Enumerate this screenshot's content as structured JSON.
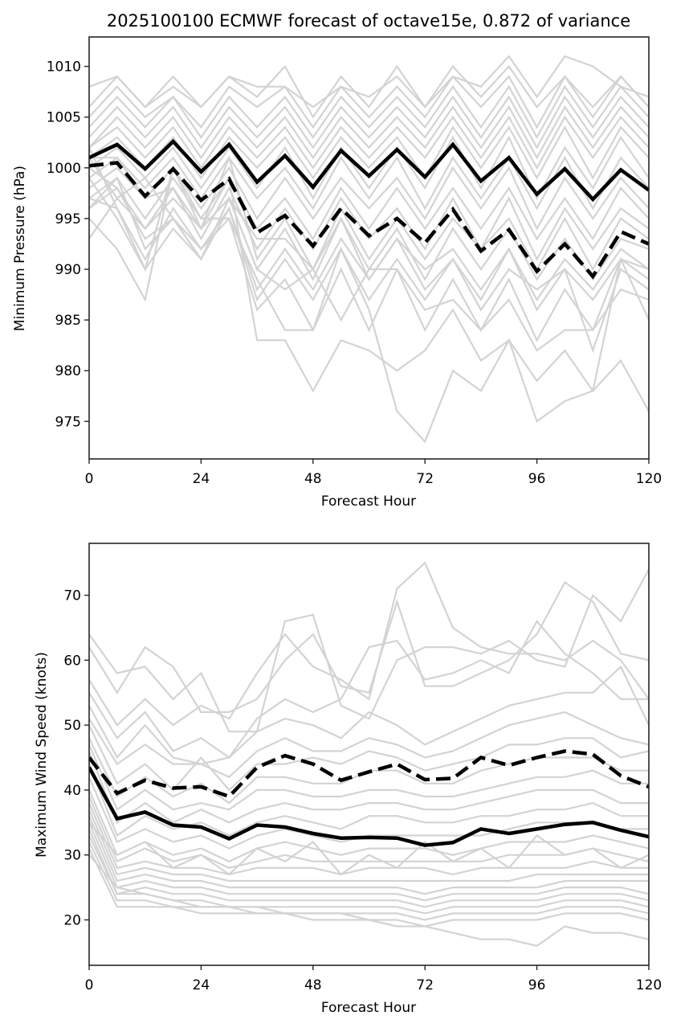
{
  "figure": {
    "title": "2025100100 ECMWF forecast of octave15e, 0.872 of variance"
  },
  "chart_data": [
    {
      "type": "line",
      "title": "2025100100 ECMWF forecast of octave15e, 0.872 of variance",
      "xlabel": "Forecast Hour",
      "ylabel": "Minimum Pressure (hPa)",
      "xlim": [
        0,
        120
      ],
      "ylim": [
        971.3,
        1012.9
      ],
      "xticks": [
        0,
        24,
        48,
        72,
        96,
        120
      ],
      "yticks": [
        975,
        980,
        985,
        990,
        995,
        1000,
        1005,
        1010
      ],
      "grid": false,
      "x": [
        0,
        6,
        12,
        18,
        24,
        30,
        36,
        42,
        48,
        54,
        60,
        66,
        72,
        78,
        84,
        90,
        96,
        102,
        108,
        114,
        120
      ],
      "series": [
        {
          "name": "ensemble-mean",
          "style": "solid",
          "color": "#000000",
          "values": [
            1001.0,
            1002.3,
            999.9,
            1002.6,
            999.6,
            1002.3,
            998.6,
            1001.2,
            998.1,
            1001.7,
            999.2,
            1001.8,
            999.1,
            1002.3,
            998.7,
            1001.0,
            997.4,
            999.9,
            996.9,
            999.8,
            997.8
          ]
        },
        {
          "name": "ensemble-median-or-control",
          "style": "dashed",
          "color": "#000000",
          "values": [
            1000.2,
            1000.5,
            997.2,
            999.9,
            996.8,
            998.9,
            993.6,
            995.3,
            992.3,
            996.0,
            993.3,
            995.0,
            992.6,
            995.9,
            991.8,
            993.9,
            989.8,
            992.5,
            989.3,
            993.7,
            992.5
          ]
        }
      ],
      "members_color": "#d3d3d3",
      "members": [
        [
          1008,
          1009,
          1006,
          1009,
          1006,
          1009,
          1007,
          1010,
          1005,
          1009,
          1006,
          1010,
          1006,
          1010,
          1007,
          1010,
          1006,
          1009,
          1006,
          1009,
          1006
        ],
        [
          1006,
          1009,
          1006,
          1008,
          1006,
          1009,
          1008,
          1008,
          1006,
          1008,
          1007,
          1009,
          1006,
          1009,
          1008,
          1011,
          1007,
          1011,
          1010,
          1008,
          1007
        ],
        [
          1005,
          1008,
          1005,
          1007,
          1004,
          1008,
          1006,
          1008,
          1004,
          1008,
          1005,
          1008,
          1005,
          1009,
          1006,
          1009,
          1004,
          1009,
          1005,
          1009,
          1006
        ],
        [
          1004,
          1007,
          1004,
          1007,
          1003,
          1007,
          1004,
          1007,
          1003,
          1007,
          1004,
          1007,
          1004,
          1008,
          1004,
          1008,
          1003,
          1008,
          1004,
          1008,
          1005
        ],
        [
          1003,
          1006,
          1003,
          1006,
          1002,
          1006,
          1003,
          1006,
          1002,
          1006,
          1003,
          1006,
          1003,
          1007,
          1003,
          1007,
          1002,
          1007,
          1003,
          1007,
          1004
        ],
        [
          1002,
          1005,
          1002,
          1005,
          1001,
          1005,
          1002,
          1005,
          1001,
          1005,
          1002,
          1005,
          1002,
          1006,
          1002,
          1006,
          1001,
          1006,
          1002,
          1006,
          1003
        ],
        [
          1002,
          1004,
          1001,
          1004,
          1000,
          1004,
          1001,
          1004,
          1000,
          1004,
          1001,
          1004,
          1001,
          1005,
          1001,
          1005,
          1000,
          1005,
          1001,
          1005,
          1002
        ],
        [
          1001,
          1003,
          1000,
          1003,
          999,
          1003,
          1000,
          1003,
          999,
          1003,
          1000,
          1003,
          999,
          1004,
          1000,
          1004,
          999,
          1004,
          999,
          1004,
          1001
        ],
        [
          1000,
          1002,
          999,
          1002,
          998,
          1002,
          998,
          1002,
          997,
          1002,
          998,
          1002,
          998,
          1003,
          998,
          1003,
          997,
          1002,
          998,
          1003,
          999
        ],
        [
          999,
          1001,
          998,
          1001,
          997,
          1001,
          997,
          1000,
          996,
          1001,
          997,
          1001,
          996,
          1001,
          997,
          1001,
          996,
          1001,
          996,
          1001,
          998
        ],
        [
          998,
          1000,
          997,
          1000,
          996,
          1000,
          995,
          999,
          995,
          999,
          996,
          999,
          995,
          1000,
          996,
          1000,
          994,
          999,
          995,
          999,
          996
        ],
        [
          997,
          999,
          995,
          999,
          995,
          999,
          994,
          997,
          993,
          998,
          994,
          998,
          994,
          998,
          994,
          998,
          993,
          997,
          993,
          998,
          995
        ],
        [
          996,
          998,
          994,
          998,
          993,
          998,
          992,
          996,
          992,
          997,
          993,
          996,
          992,
          997,
          992,
          997,
          991,
          996,
          992,
          996,
          994
        ],
        [
          1001,
          997,
          994,
          997,
          994,
          1001,
          991,
          995,
          990,
          996,
          991,
          995,
          991,
          995,
          992,
          995,
          990,
          995,
          990,
          995,
          993
        ],
        [
          996,
          999,
          992,
          995,
          991,
          997,
          990,
          994,
          989,
          995,
          990,
          994,
          989,
          994,
          990,
          994,
          989,
          993,
          989,
          993,
          992
        ],
        [
          997,
          996,
          991,
          996,
          992,
          996,
          988,
          992,
          988,
          993,
          989,
          993,
          990,
          992,
          988,
          992,
          987,
          991,
          988,
          992,
          990
        ],
        [
          999,
          995,
          990,
          994,
          991,
          996,
          987,
          991,
          987,
          992,
          987,
          991,
          987,
          991,
          987,
          992,
          986,
          990,
          987,
          991,
          989
        ],
        [
          1000,
          998,
          993,
          995,
          992,
          995,
          986,
          989,
          984,
          990,
          984,
          990,
          984,
          989,
          984,
          989,
          983,
          988,
          984,
          988,
          987
        ],
        [
          995,
          992,
          987,
          1000,
          994,
          999,
          983,
          983,
          978,
          983,
          982,
          980,
          982,
          986,
          981,
          983,
          979,
          982,
          978,
          981,
          976
        ],
        [
          1002,
          996,
          990,
          1000,
          995,
          995,
          989,
          984,
          984,
          992,
          986,
          976,
          973,
          980,
          978,
          983,
          975,
          977,
          978,
          991,
          985
        ],
        [
          993,
          997,
          999,
          995,
          991,
          997,
          990,
          988,
          990,
          985,
          990,
          990,
          986,
          987,
          984,
          987,
          982,
          984,
          984,
          991,
          990
        ],
        [
          1001,
          1001,
          997,
          998,
          994,
          997,
          993,
          993,
          990,
          995,
          989,
          993,
          988,
          991,
          986,
          990,
          988,
          990,
          982,
          990,
          988
        ]
      ]
    },
    {
      "type": "line",
      "title": "",
      "xlabel": "Forecast Hour",
      "ylabel": "Maximum Wind Speed (knots)",
      "xlim": [
        0,
        120
      ],
      "ylim": [
        13,
        78
      ],
      "xticks": [
        0,
        24,
        48,
        72,
        96,
        120
      ],
      "yticks": [
        20,
        30,
        40,
        50,
        60,
        70
      ],
      "grid": false,
      "x": [
        0,
        6,
        12,
        18,
        24,
        30,
        36,
        42,
        48,
        54,
        60,
        66,
        72,
        78,
        84,
        90,
        96,
        102,
        108,
        114,
        120
      ],
      "series": [
        {
          "name": "ensemble-mean",
          "style": "solid",
          "color": "#000000",
          "values": [
            43.5,
            35.6,
            36.6,
            34.6,
            34.3,
            32.5,
            34.6,
            34.3,
            33.3,
            32.6,
            32.7,
            32.6,
            31.5,
            31.9,
            34.0,
            33.3,
            34.0,
            34.7,
            35.0,
            33.8,
            32.8
          ]
        },
        {
          "name": "ensemble-median-or-control",
          "style": "dashed",
          "color": "#000000",
          "values": [
            45.0,
            39.5,
            41.5,
            40.3,
            40.5,
            39.0,
            43.5,
            45.3,
            44.0,
            41.5,
            42.8,
            44.0,
            41.6,
            41.8,
            45.0,
            43.8,
            45.0,
            46.0,
            45.5,
            42.2,
            40.5
          ]
        }
      ],
      "members_color": "#d3d3d3",
      "members": [
        [
          64,
          58,
          59,
          54,
          58,
          49,
          49,
          66,
          67,
          53,
          51,
          60,
          62,
          62,
          61,
          63,
          60,
          59,
          70,
          66,
          74
        ],
        [
          62,
          55,
          62,
          59,
          52,
          52,
          54,
          60,
          64,
          56,
          55,
          69,
          56,
          56,
          58,
          60,
          64,
          72,
          69,
          61,
          60
        ],
        [
          57,
          50,
          54,
          50,
          53,
          51,
          58,
          64,
          59,
          57,
          54,
          71,
          75,
          65,
          62,
          61,
          61,
          60,
          63,
          60,
          54
        ],
        [
          55,
          48,
          52,
          46,
          48,
          45,
          51,
          54,
          52,
          54,
          62,
          63,
          57,
          58,
          60,
          58,
          66,
          61,
          58,
          54,
          54
        ],
        [
          53,
          45,
          50,
          45,
          44,
          45,
          49,
          51,
          50,
          48,
          52,
          50,
          47,
          49,
          51,
          53,
          54,
          55,
          55,
          59,
          50
        ],
        [
          51,
          44,
          47,
          44,
          44,
          42,
          46,
          48,
          46,
          46,
          48,
          47,
          45,
          46,
          48,
          50,
          51,
          52,
          50,
          48,
          47
        ],
        [
          50,
          41,
          44,
          40,
          45,
          40,
          44,
          44,
          45,
          44,
          46,
          45,
          43,
          44,
          45,
          47,
          47,
          48,
          48,
          45,
          46
        ],
        [
          48,
          39,
          42,
          39,
          41,
          38,
          42,
          42,
          41,
          41,
          43,
          43,
          41,
          41,
          43,
          44,
          45,
          45,
          45,
          43,
          43
        ],
        [
          47,
          37,
          40,
          37,
          38,
          37,
          40,
          40,
          39,
          39,
          40,
          40,
          39,
          39,
          40,
          41,
          42,
          42,
          43,
          41,
          41
        ],
        [
          46,
          35,
          38,
          35,
          37,
          35,
          37,
          38,
          37,
          37,
          38,
          38,
          37,
          37,
          38,
          39,
          40,
          40,
          40,
          38,
          38
        ],
        [
          44,
          33,
          36,
          34,
          35,
          33,
          35,
          36,
          35,
          34,
          36,
          36,
          35,
          35,
          36,
          36,
          37,
          37,
          38,
          36,
          36
        ],
        [
          42,
          32,
          34,
          32,
          33,
          31,
          33,
          34,
          33,
          32,
          33,
          33,
          33,
          33,
          33,
          34,
          35,
          35,
          35,
          34,
          34
        ],
        [
          40,
          30,
          32,
          30,
          31,
          29,
          31,
          32,
          31,
          30,
          31,
          31,
          31,
          30,
          31,
          32,
          32,
          32,
          33,
          32,
          31
        ],
        [
          39,
          29,
          31,
          29,
          30,
          28,
          29,
          30,
          29,
          29,
          29,
          29,
          29,
          29,
          29,
          30,
          30,
          30,
          31,
          30,
          29
        ],
        [
          38,
          28,
          29,
          28,
          28,
          27,
          28,
          28,
          28,
          27,
          28,
          28,
          28,
          27,
          28,
          28,
          28,
          28,
          29,
          28,
          28
        ],
        [
          37,
          27,
          28,
          27,
          27,
          26,
          26,
          26,
          26,
          26,
          26,
          26,
          26,
          26,
          26,
          26,
          27,
          27,
          27,
          27,
          27
        ],
        [
          36,
          26,
          27,
          26,
          26,
          25,
          25,
          25,
          25,
          25,
          25,
          25,
          24,
          25,
          25,
          25,
          25,
          26,
          26,
          26,
          26
        ],
        [
          35,
          25,
          26,
          25,
          25,
          24,
          24,
          24,
          24,
          24,
          24,
          24,
          23,
          24,
          24,
          24,
          24,
          25,
          25,
          25,
          24
        ],
        [
          34,
          24,
          25,
          24,
          24,
          23,
          23,
          23,
          23,
          23,
          23,
          23,
          22,
          23,
          23,
          23,
          23,
          24,
          24,
          24,
          23
        ],
        [
          33,
          24,
          24,
          23,
          23,
          22,
          22,
          22,
          22,
          22,
          22,
          22,
          21,
          22,
          22,
          22,
          22,
          23,
          23,
          23,
          22
        ],
        [
          32,
          23,
          23,
          22,
          22,
          22,
          21,
          21,
          21,
          21,
          21,
          21,
          20,
          21,
          21,
          21,
          21,
          22,
          22,
          22,
          21
        ],
        [
          31,
          22,
          22,
          22,
          21,
          21,
          21,
          21,
          20,
          20,
          20,
          20,
          19,
          20,
          20,
          20,
          20,
          21,
          21,
          21,
          20
        ],
        [
          30,
          25,
          24,
          23,
          22,
          22,
          22,
          21,
          21,
          21,
          20,
          19,
          19,
          18,
          17,
          17,
          16,
          19,
          18,
          18,
          17
        ],
        [
          35,
          30,
          32,
          28,
          30,
          27,
          31,
          29,
          32,
          27,
          30,
          28,
          32,
          29,
          31,
          28,
          33,
          30,
          31,
          28,
          30
        ]
      ]
    }
  ]
}
